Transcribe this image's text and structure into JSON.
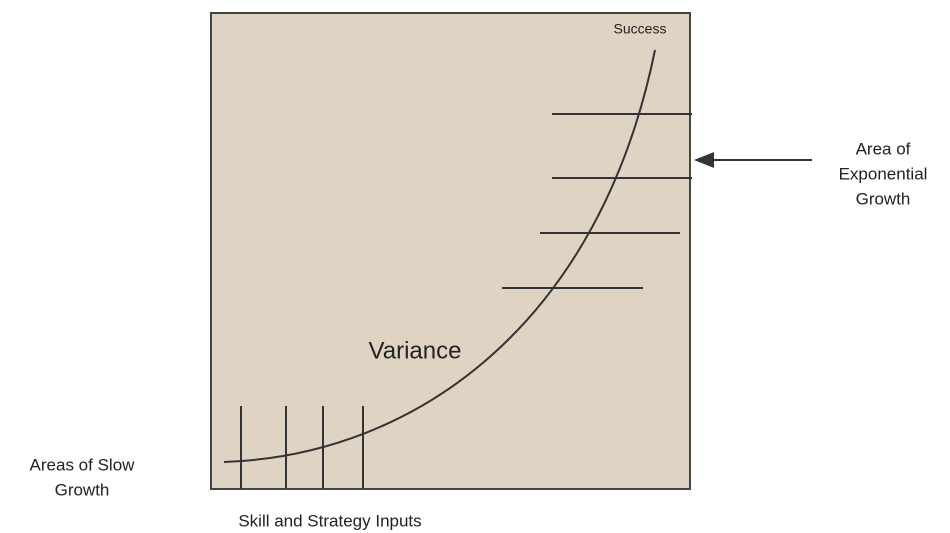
{
  "diagram": {
    "success_label": "Success",
    "center_label": "Variance",
    "exponential_label": [
      "Area of",
      "Exponential",
      "Growth"
    ],
    "slow_label": [
      "Areas of Slow",
      "Growth"
    ],
    "bottom_label": "Skill and Strategy Inputs"
  }
}
